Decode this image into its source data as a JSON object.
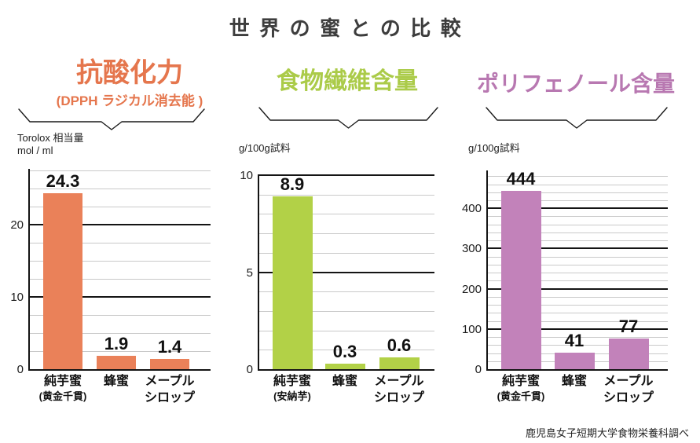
{
  "page": {
    "title": "世界の蜜との比較",
    "caption": "鹿児島女子短期大学食物栄養科調べ"
  },
  "chart_data": [
    {
      "type": "bar",
      "title": "抗酸化力",
      "subtitle": "(DPPH ラジカル消去能 )",
      "unit": "Torolox 相当量\nmol / ml",
      "categories": [
        [
          "純芋蜜",
          "(黄金千貫)"
        ],
        [
          "蜂蜜"
        ],
        [
          "メープル",
          "シロップ"
        ]
      ],
      "values": [
        24.3,
        1.9,
        1.4
      ],
      "value_labels": [
        "24.3",
        "1.9",
        "1.4"
      ],
      "yticks": [
        0,
        10,
        20
      ],
      "ylim": [
        0,
        27.7
      ],
      "minor_gridline_step": 2.5,
      "grid": true,
      "legend": false,
      "bar_color": "#ea8159",
      "title_color": "#e5764d"
    },
    {
      "type": "bar",
      "title": "食物繊維含量",
      "subtitle": "",
      "unit": "g/100g試料",
      "categories": [
        [
          "純芋蜜",
          "(安納芋)"
        ],
        [
          "蜂蜜"
        ],
        [
          "メープル",
          "シロップ"
        ]
      ],
      "values": [
        8.9,
        0.3,
        0.6
      ],
      "value_labels": [
        "8.9",
        "0.3",
        "0.6"
      ],
      "yticks": [
        0,
        5,
        10
      ],
      "ylim": [
        0,
        10
      ],
      "minor_gridline_step": 1,
      "grid": true,
      "legend": false,
      "bar_color": "#b2d147",
      "title_color": "#abcb49"
    },
    {
      "type": "bar",
      "title": "ポリフェノール含量",
      "subtitle": "",
      "unit": "g/100g試料",
      "categories": [
        [
          "純芋蜜",
          "(黄金千貫)"
        ],
        [
          "蜂蜜"
        ],
        [
          "メープル",
          "シロップ"
        ]
      ],
      "values": [
        444,
        41,
        77
      ],
      "value_labels": [
        "444",
        "41",
        "77"
      ],
      "yticks": [
        0,
        100,
        200,
        300,
        400
      ],
      "ylim": [
        0,
        495
      ],
      "minor_gridline_step": 20,
      "grid": true,
      "legend": false,
      "bar_color": "#c282ba",
      "title_color": "#b878b1"
    }
  ]
}
